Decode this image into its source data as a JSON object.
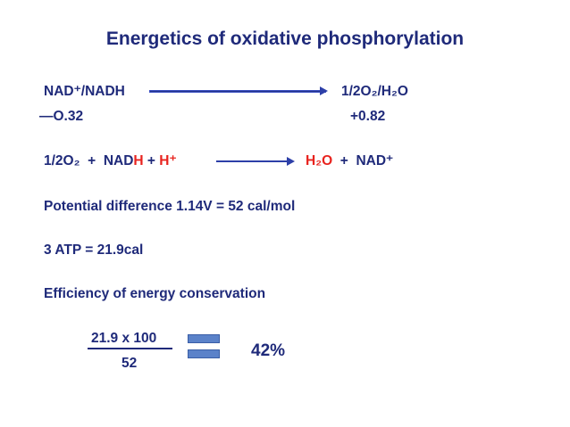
{
  "title": "Energetics of oxidative phosphorylation",
  "couple": {
    "left": "NAD⁺/NADH",
    "right": "1/2O₂/H₂O",
    "left_potential": "—O.32",
    "right_potential": "+0.82"
  },
  "reaction": {
    "o2": "1/2O₂",
    "plus1": "+",
    "nad": "NAD",
    "h_red": "H",
    "plus2": "+",
    "hplus": "H⁺",
    "h2o": "H₂O",
    "plus3": "+",
    "nadplus": "NAD⁺"
  },
  "potential_difference": "Potential difference 1.14V  = 52 cal/mol",
  "atp": "3 ATP = 21.9cal",
  "efficiency_heading": "Efficiency of energy conservation",
  "fraction": {
    "numerator": "21.9 x 100",
    "denominator": "52"
  },
  "result": "42%",
  "colors": {
    "text": "#1f2a7a",
    "highlight": "#e8231e",
    "equals_fill": "#5b82c9"
  }
}
